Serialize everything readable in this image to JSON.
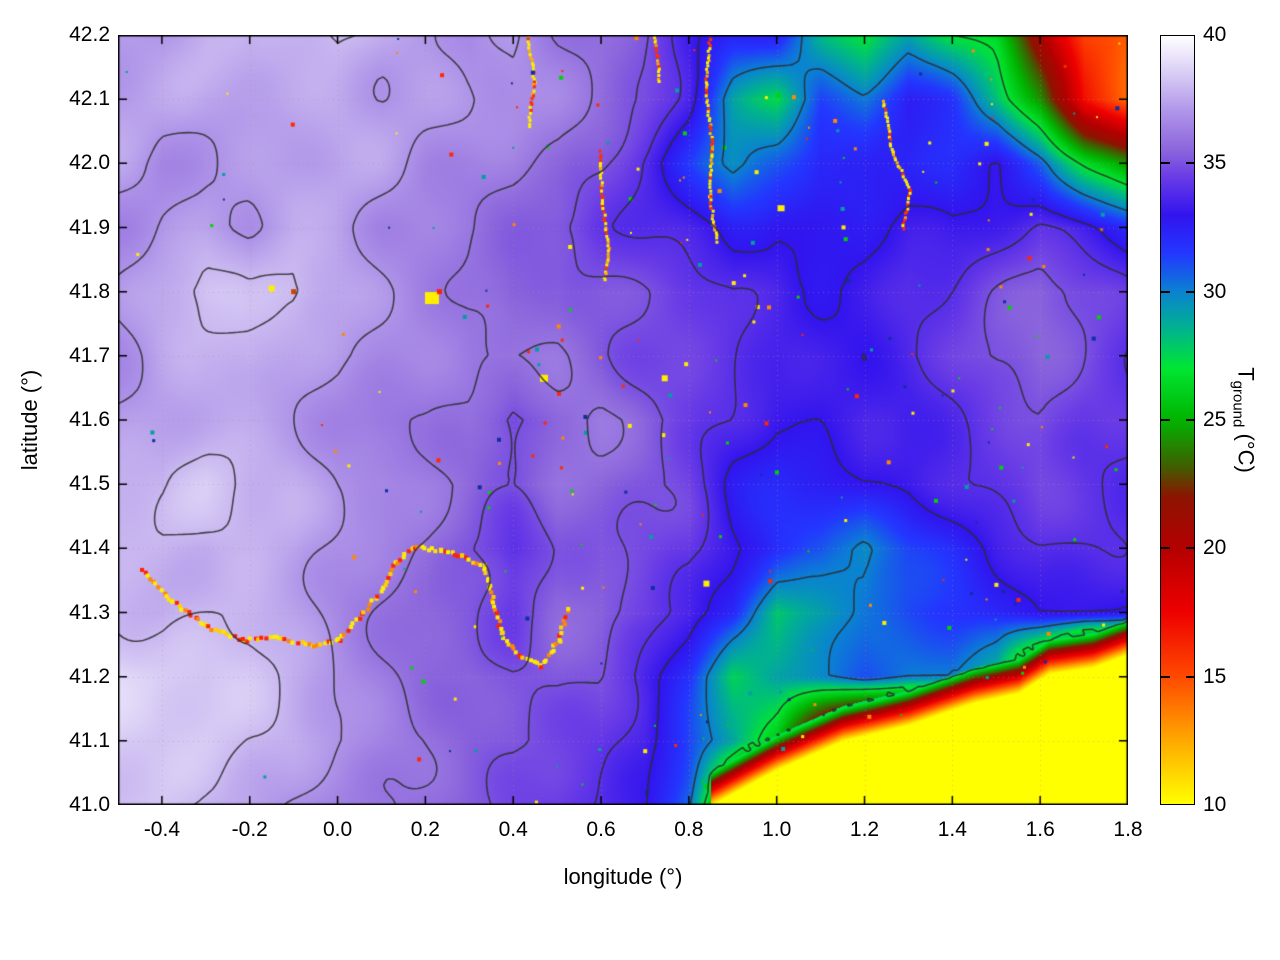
{
  "figure": {
    "background": "#ffffff"
  },
  "axes": {
    "xlabel": "longitude (°)",
    "ylabel": "latitude (°)",
    "xlim": [
      -0.5,
      1.8
    ],
    "ylim": [
      41.0,
      42.2
    ],
    "x_tick_labels": [
      "-0.4",
      "-0.2",
      "0.0",
      "0.2",
      "0.4",
      "0.6",
      "0.8",
      "1.0",
      "1.2",
      "1.4",
      "1.6",
      "1.8"
    ],
    "y_tick_labels": [
      "41.0",
      "41.1",
      "41.2",
      "41.3",
      "41.4",
      "41.5",
      "41.6",
      "41.7",
      "41.8",
      "41.9",
      "42.0",
      "42.1",
      "42.2"
    ],
    "grid_style": "dotted"
  },
  "colorbar": {
    "label_main": "T",
    "label_sub": "ground",
    "label_unit": " (°C)",
    "min": 10,
    "max": 40,
    "tick_labels": [
      "10",
      "15",
      "20",
      "25",
      "30",
      "35",
      "40"
    ]
  },
  "chart_data": {
    "type": "heatmap",
    "variable": "T_ground (°C)",
    "lon_range": [
      -0.5,
      1.8
    ],
    "lat_range": [
      41.0,
      42.2
    ],
    "value_range": [
      10,
      40
    ],
    "colormap": [
      [
        10,
        "#ffff00"
      ],
      [
        12.5,
        "#ffa800"
      ],
      [
        15,
        "#ff4800"
      ],
      [
        17.5,
        "#ee0000"
      ],
      [
        20,
        "#b40000"
      ],
      [
        22,
        "#8c1400"
      ],
      [
        23.2,
        "#3f5f00"
      ],
      [
        25,
        "#00b400"
      ],
      [
        27,
        "#00e632"
      ],
      [
        28.5,
        "#00b48c"
      ],
      [
        30,
        "#0a82d2"
      ],
      [
        31.5,
        "#2337ff"
      ],
      [
        33,
        "#3214ee"
      ],
      [
        34.5,
        "#6a3ce6"
      ],
      [
        35.5,
        "#8a64dc"
      ],
      [
        37,
        "#ae93e8"
      ],
      [
        38.2,
        "#cfc0f2"
      ],
      [
        39.2,
        "#eae4fa"
      ],
      [
        40,
        "#ffffff"
      ]
    ],
    "grid": {
      "ncols": 24,
      "nrows": 13,
      "lon_step": 0.1,
      "lat_step": 0.1,
      "order": "north_to_south",
      "values": [
        [
          37,
          37,
          37.5,
          37,
          37.5,
          38,
          37.5,
          37.5,
          37,
          37.5,
          36.5,
          36,
          35,
          33.5,
          32.5,
          33,
          29,
          27,
          29,
          27,
          26,
          20,
          15,
          14
        ],
        [
          37,
          37,
          37,
          37.5,
          37.5,
          37.5,
          37,
          37,
          37,
          37,
          36.5,
          35.5,
          34.5,
          33,
          29,
          27.5,
          31,
          30,
          32,
          31,
          28,
          24,
          17,
          14.5
        ],
        [
          37,
          36.5,
          37,
          37,
          37,
          37,
          37,
          36.5,
          36.5,
          36.5,
          36,
          35,
          33.5,
          31.5,
          29.5,
          31,
          32.5,
          32,
          32,
          32,
          33,
          31,
          27,
          24
        ],
        [
          36.5,
          37,
          37,
          36.5,
          37,
          37,
          36.5,
          36.5,
          36.5,
          36,
          35.5,
          34.5,
          34,
          33.5,
          33,
          33.5,
          33,
          33,
          33.5,
          33,
          33.5,
          34,
          33,
          32
        ],
        [
          37,
          37.5,
          38,
          37.5,
          38,
          37.5,
          37,
          36.5,
          36,
          35.5,
          36,
          35.5,
          35,
          34.5,
          34,
          34,
          33.5,
          33.5,
          34,
          34,
          34.5,
          35,
          34.5,
          34
        ],
        [
          37,
          37.5,
          37.5,
          38,
          37.5,
          37.5,
          37,
          36.5,
          36,
          36,
          36,
          35.5,
          35,
          34.5,
          34,
          33.5,
          33.5,
          33.5,
          34,
          34.5,
          35,
          35,
          34.5,
          34
        ],
        [
          37.5,
          37.5,
          37.5,
          37.5,
          37.5,
          37,
          36.5,
          36.5,
          36,
          34.5,
          35.5,
          36,
          35.5,
          35,
          34,
          33,
          33,
          33.5,
          33.5,
          34,
          34.5,
          35,
          34.5,
          34.5
        ],
        [
          38,
          37.5,
          38,
          37.5,
          37.5,
          37,
          37,
          36.5,
          36,
          35.5,
          36,
          35.5,
          35,
          34.5,
          33,
          32.5,
          32.5,
          33,
          33,
          33.5,
          34,
          34.5,
          34,
          34
        ],
        [
          38,
          38,
          37.5,
          37.5,
          37.5,
          37,
          36.5,
          36,
          35,
          34,
          35.5,
          35.5,
          35,
          34.5,
          33,
          32,
          31.5,
          30,
          31.5,
          32,
          33,
          33.5,
          33.5,
          33.5
        ],
        [
          38.5,
          38,
          38,
          38,
          37.5,
          37,
          36.5,
          36,
          35.5,
          34.5,
          35.5,
          35.5,
          35,
          34,
          32.5,
          28,
          29,
          30.5,
          31.5,
          32,
          32.5,
          33,
          33,
          33
        ],
        [
          39,
          38.5,
          38,
          38,
          37.5,
          37,
          36.5,
          36,
          36,
          35.5,
          35.5,
          35,
          33.5,
          32,
          28,
          29.5,
          30,
          31,
          30,
          30,
          28,
          20,
          10,
          10
        ],
        [
          38.5,
          38,
          38,
          37.5,
          37.5,
          37,
          36.5,
          36,
          35.5,
          35.5,
          35,
          34.5,
          33.5,
          31,
          29,
          26,
          18,
          10,
          10,
          10,
          10,
          10,
          10,
          10
        ],
        [
          38,
          38,
          37.5,
          37.5,
          37,
          36.5,
          36,
          35.5,
          35,
          34.5,
          34.5,
          34,
          33,
          30,
          20,
          10,
          10,
          10,
          10,
          10,
          10,
          10,
          10,
          10
        ]
      ]
    },
    "contour_levels": [
      27,
      30,
      33,
      34,
      35,
      36,
      37,
      38
    ],
    "contour_color": "rgba(45,45,45,0.85)",
    "sea_value": 10,
    "coastline": [
      [
        0.85,
        41.0
      ],
      [
        1.0,
        41.055
      ],
      [
        1.15,
        41.1
      ],
      [
        1.3,
        41.125
      ],
      [
        1.45,
        41.16
      ],
      [
        1.55,
        41.175
      ],
      [
        1.62,
        41.205
      ],
      [
        1.72,
        41.215
      ],
      [
        1.8,
        41.235
      ]
    ],
    "river_path": [
      [
        -0.45,
        41.37
      ],
      [
        -0.38,
        41.32
      ],
      [
        -0.3,
        41.28
      ],
      [
        -0.22,
        41.26
      ],
      [
        -0.14,
        41.265
      ],
      [
        -0.06,
        41.25
      ],
      [
        0.0,
        41.26
      ],
      [
        0.05,
        41.3
      ],
      [
        0.1,
        41.34
      ],
      [
        0.13,
        41.38
      ],
      [
        0.17,
        41.405
      ],
      [
        0.23,
        41.4
      ],
      [
        0.28,
        41.39
      ],
      [
        0.33,
        41.375
      ],
      [
        0.35,
        41.32
      ],
      [
        0.37,
        41.27
      ],
      [
        0.41,
        41.235
      ],
      [
        0.46,
        41.22
      ],
      [
        0.5,
        41.26
      ],
      [
        0.52,
        41.31
      ]
    ],
    "streams": [
      [
        [
          0.595,
          42.02
        ],
        [
          0.6,
          41.94
        ],
        [
          0.615,
          41.87
        ],
        [
          0.605,
          41.82
        ]
      ],
      [
        [
          0.845,
          42.2
        ],
        [
          0.835,
          42.12
        ],
        [
          0.85,
          42.03
        ],
        [
          0.845,
          41.95
        ],
        [
          0.86,
          41.88
        ]
      ],
      [
        [
          1.24,
          42.1
        ],
        [
          1.26,
          42.02
        ],
        [
          1.3,
          41.96
        ],
        [
          1.285,
          41.9
        ]
      ],
      [
        [
          0.43,
          42.2
        ],
        [
          0.445,
          42.13
        ],
        [
          0.432,
          42.06
        ]
      ],
      [
        [
          0.72,
          42.2
        ],
        [
          0.73,
          42.13
        ]
      ]
    ],
    "patches": [
      {
        "lon": 0.215,
        "lat": 41.79,
        "w": 14,
        "h": 12,
        "color": "#ffee00"
      },
      {
        "lon": 0.232,
        "lat": 41.8,
        "w": 5,
        "h": 5,
        "color": "#ff2000"
      },
      {
        "lon": 0.47,
        "lat": 41.665,
        "w": 8,
        "h": 7,
        "color": "#ffee00"
      },
      {
        "lon": 0.745,
        "lat": 41.665,
        "w": 6,
        "h": 6,
        "color": "#ffee00"
      },
      {
        "lon": -0.15,
        "lat": 41.805,
        "w": 6,
        "h": 6,
        "color": "#ffee00"
      },
      {
        "lon": -0.1,
        "lat": 41.8,
        "w": 5,
        "h": 5,
        "color": "#cc4400"
      },
      {
        "lon": 0.84,
        "lat": 41.345,
        "w": 6,
        "h": 6,
        "color": "#ffee00"
      },
      {
        "lon": 1.01,
        "lat": 41.93,
        "w": 7,
        "h": 6,
        "color": "#ffee00"
      }
    ],
    "speckles": {
      "seed": 11,
      "count": 380,
      "colors": [
        "#ffee00",
        "#ff2800",
        "#00d400",
        "#102ea0",
        "#ff8800",
        "#00a0a0"
      ]
    }
  }
}
